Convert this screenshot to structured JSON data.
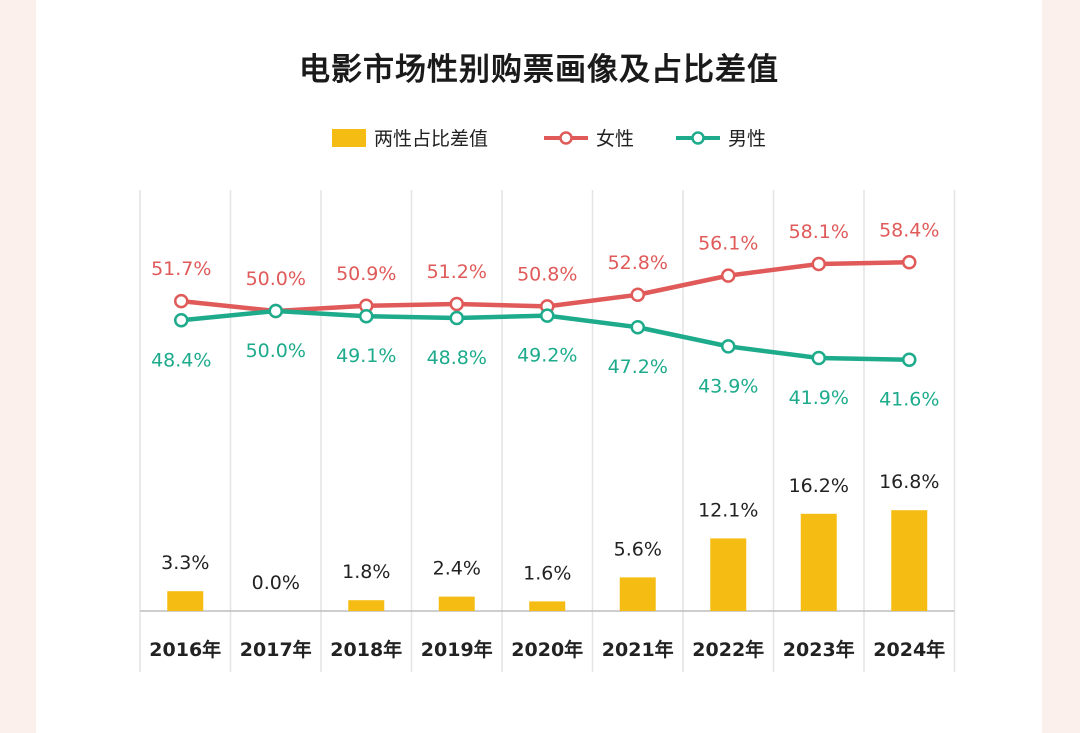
{
  "chart_data": {
    "type": "bar+line",
    "title": "电影市场性别购票画像及占比差值",
    "categories": [
      "2016年",
      "2017年",
      "2018年",
      "2019年",
      "2020年",
      "2021年",
      "2022年",
      "2023年",
      "2024年"
    ],
    "series": [
      {
        "name": "两性占比差值",
        "kind": "bar",
        "color": "#f5bd13",
        "values": [
          3.3,
          0.0,
          1.8,
          2.4,
          1.6,
          5.6,
          12.1,
          16.2,
          16.8
        ],
        "labels": [
          "3.3%",
          "0.0%",
          "1.8%",
          "2.4%",
          "1.6%",
          "5.6%",
          "12.1%",
          "16.2%",
          "16.8%"
        ]
      },
      {
        "name": "女性",
        "kind": "line",
        "color": "#e05a5a",
        "values": [
          51.7,
          50.0,
          50.9,
          51.2,
          50.8,
          52.8,
          56.1,
          58.1,
          58.4
        ],
        "labels": [
          "51.7%",
          "50.0%",
          "50.9%",
          "51.2%",
          "50.8%",
          "52.8%",
          "56.1%",
          "58.1%",
          "58.4%"
        ]
      },
      {
        "name": "男性",
        "kind": "line",
        "color": "#1dab8c",
        "values": [
          48.4,
          50.0,
          49.1,
          48.8,
          49.2,
          47.2,
          43.9,
          41.9,
          41.6
        ],
        "labels": [
          "48.4%",
          "50.0%",
          "49.1%",
          "48.8%",
          "49.2%",
          "47.2%",
          "43.9%",
          "41.9%",
          "41.6%"
        ]
      }
    ],
    "legend_position": "top-center",
    "grid": "vertical separators"
  }
}
